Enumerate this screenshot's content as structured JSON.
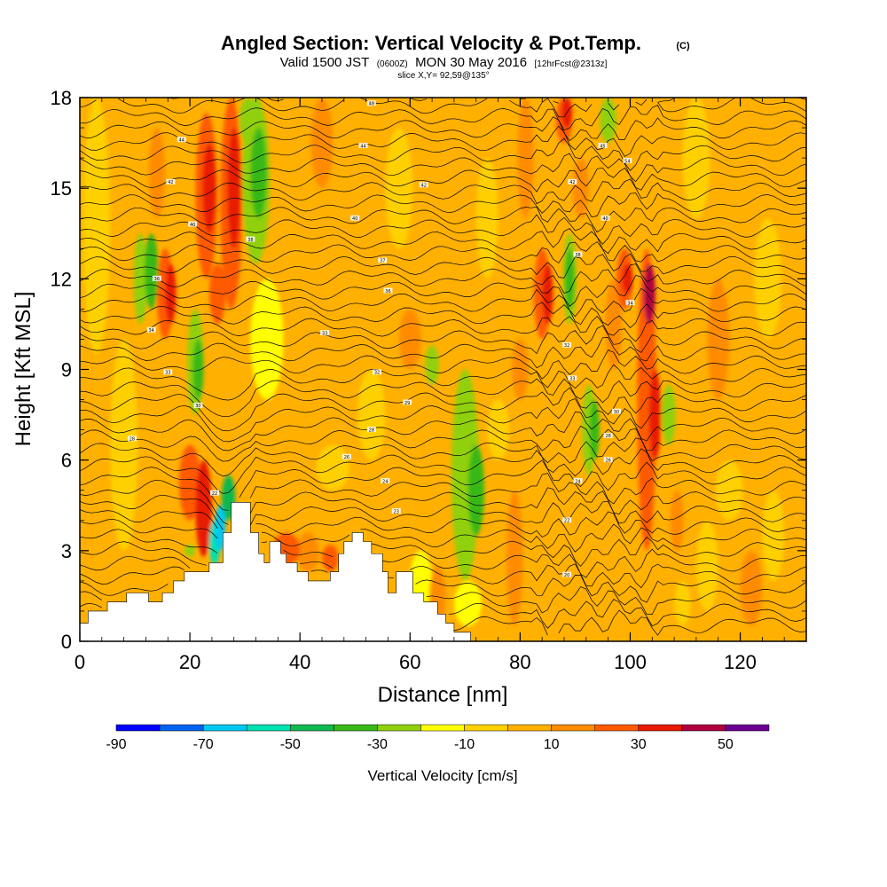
{
  "title": {
    "main": "Angled Section: Vertical Velocity & Pot.Temp.",
    "tag": "(C)",
    "sub_part1": "Valid 1500 JST",
    "sub_part2": "(0600Z)",
    "sub_part3": "MON 30 May 2016",
    "sub_part4": "[12hrFcst@2313z]",
    "slice": "slice X,Y= 92,59@135°"
  },
  "chart_data": {
    "type": "heatmap",
    "xlabel": "Distance [nm]",
    "ylabel": "Height [Kft MSL]",
    "xlim": [
      0,
      132
    ],
    "ylim": [
      0,
      18
    ],
    "x_ticks": [
      0,
      20,
      40,
      60,
      80,
      100,
      120
    ],
    "x_tick_labels": [
      "0",
      "20",
      "40",
      "60",
      "80",
      "100",
      "120"
    ],
    "y_ticks": [
      0,
      3,
      6,
      9,
      12,
      15,
      18
    ],
    "y_tick_labels": [
      "0",
      "3",
      "6",
      "9",
      "12",
      "15",
      "18"
    ],
    "colorbar": {
      "label": "Vertical Velocity [cm/s]",
      "tick_values": [
        -90,
        -70,
        -50,
        -30,
        -10,
        10,
        30,
        50
      ],
      "tick_labels": [
        "-90",
        "-70",
        "-50",
        "-30",
        "-10",
        "10",
        "30",
        "50"
      ],
      "bins": [
        {
          "from": -90,
          "to": -80,
          "color": "#0000ff"
        },
        {
          "from": -80,
          "to": -70,
          "color": "#0064f0"
        },
        {
          "from": -70,
          "to": -60,
          "color": "#00c8f0"
        },
        {
          "from": -60,
          "to": -50,
          "color": "#00e0b0"
        },
        {
          "from": -50,
          "to": -40,
          "color": "#10b850"
        },
        {
          "from": -40,
          "to": -30,
          "color": "#38b818"
        },
        {
          "from": -30,
          "to": -20,
          "color": "#90d010"
        },
        {
          "from": -20,
          "to": -10,
          "color": "#ffff00"
        },
        {
          "from": -10,
          "to": 0,
          "color": "#ffd000"
        },
        {
          "from": 0,
          "to": 10,
          "color": "#ffb000"
        },
        {
          "from": 10,
          "to": 20,
          "color": "#ff8c00"
        },
        {
          "from": 20,
          "to": 30,
          "color": "#ff5a00"
        },
        {
          "from": 30,
          "to": 40,
          "color": "#e81a00"
        },
        {
          "from": 40,
          "to": 50,
          "color": "#b00040"
        },
        {
          "from": 50,
          "to": 60,
          "color": "#6a0090"
        }
      ]
    },
    "background_field_color": "#ffb000",
    "velocity_cells": [
      {
        "x": 3,
        "y0": 9.5,
        "y1": 18,
        "w": 4,
        "v": -5
      },
      {
        "x": 8,
        "y0": 3,
        "y1": 10,
        "w": 4,
        "v": -5
      },
      {
        "x": 11,
        "y0": 10.5,
        "y1": 13.5,
        "w": 1.5,
        "v": -25
      },
      {
        "x": 13,
        "y0": 11,
        "y1": 13.5,
        "w": 1.5,
        "v": -35
      },
      {
        "x": 15.5,
        "y0": 10,
        "y1": 13,
        "w": 2,
        "v": 25
      },
      {
        "x": 16.5,
        "y0": 10.5,
        "y1": 12.5,
        "w": 1,
        "v": 35
      },
      {
        "x": 14,
        "y0": 14,
        "y1": 17,
        "w": 2,
        "v": 15
      },
      {
        "x": 21,
        "y0": 7.5,
        "y1": 11,
        "w": 2,
        "v": -25
      },
      {
        "x": 21.5,
        "y0": 8,
        "y1": 10,
        "w": 1,
        "v": -35
      },
      {
        "x": 23,
        "y0": 12,
        "y1": 17.5,
        "w": 3,
        "v": 25
      },
      {
        "x": 23.5,
        "y0": 13.5,
        "y1": 16.5,
        "w": 1.5,
        "v": 35
      },
      {
        "x": 27.5,
        "y0": 11,
        "y1": 18,
        "w": 3,
        "v": 25
      },
      {
        "x": 28,
        "y0": 13,
        "y1": 17,
        "w": 1.5,
        "v": 35
      },
      {
        "x": 32,
        "y0": 12.5,
        "y1": 18,
        "w": 4,
        "v": -25
      },
      {
        "x": 32.5,
        "y0": 14,
        "y1": 17,
        "w": 2,
        "v": -35
      },
      {
        "x": 30.5,
        "y0": 16.5,
        "y1": 18,
        "w": 2,
        "v": -25
      },
      {
        "x": 25,
        "y0": 10.5,
        "y1": 12.5,
        "w": 2,
        "v": 25
      },
      {
        "x": 34,
        "y0": 8,
        "y1": 12,
        "w": 5,
        "v": -15
      },
      {
        "x": 20,
        "y0": 4,
        "y1": 6.5,
        "w": 3,
        "v": 25
      },
      {
        "x": 22.5,
        "y0": 2.8,
        "y1": 6,
        "w": 2,
        "v": 35
      },
      {
        "x": 24.5,
        "y0": 2.5,
        "y1": 4,
        "w": 1,
        "v": -55
      },
      {
        "x": 25.5,
        "y0": 3,
        "y1": 4.5,
        "w": 1,
        "v": -65
      },
      {
        "x": 27,
        "y0": 4,
        "y1": 5.5,
        "w": 1.5,
        "v": -45
      },
      {
        "x": 20,
        "y0": 2.8,
        "y1": 3.2,
        "w": 1,
        "v": -30
      },
      {
        "x": 37.5,
        "y0": 2.5,
        "y1": 3.6,
        "w": 4,
        "v": 25
      },
      {
        "x": 41.5,
        "y0": 2.3,
        "y1": 3.6,
        "w": 3,
        "v": 15
      },
      {
        "x": 45.5,
        "y0": 2.3,
        "y1": 3.2,
        "w": 2,
        "v": 25
      },
      {
        "x": 46,
        "y0": 5,
        "y1": 6.5,
        "w": 5,
        "v": -5
      },
      {
        "x": 53,
        "y0": 6,
        "y1": 9,
        "w": 4,
        "v": -5
      },
      {
        "x": 62,
        "y0": 1,
        "y1": 3,
        "w": 3,
        "v": -15
      },
      {
        "x": 64,
        "y0": 8.5,
        "y1": 9.8,
        "w": 1.5,
        "v": -25
      },
      {
        "x": 65,
        "y0": 0.5,
        "y1": 2.5,
        "w": 2,
        "v": 15
      },
      {
        "x": 70,
        "y0": 2,
        "y1": 9,
        "w": 4,
        "v": -25
      },
      {
        "x": 72,
        "y0": 3.5,
        "y1": 6.5,
        "w": 2,
        "v": -35
      },
      {
        "x": 69,
        "y0": 5,
        "y1": 8,
        "w": 1.5,
        "v": 10
      },
      {
        "x": 70.5,
        "y0": 0.5,
        "y1": 2,
        "w": 4,
        "v": -15
      },
      {
        "x": 76,
        "y0": 6,
        "y1": 8,
        "w": 3,
        "v": -5
      },
      {
        "x": 79,
        "y0": 0.5,
        "y1": 5,
        "w": 2,
        "v": 10
      },
      {
        "x": 80,
        "y0": 8,
        "y1": 10,
        "w": 2,
        "v": 15
      },
      {
        "x": 84,
        "y0": 10,
        "y1": 13,
        "w": 2,
        "v": 25
      },
      {
        "x": 85,
        "y0": 10.5,
        "y1": 12.5,
        "w": 1,
        "v": 35
      },
      {
        "x": 88,
        "y0": 16.5,
        "y1": 18,
        "w": 2,
        "v": 25
      },
      {
        "x": 88.5,
        "y0": 17,
        "y1": 18,
        "w": 1,
        "v": 35
      },
      {
        "x": 89,
        "y0": 10.5,
        "y1": 13.5,
        "w": 1.5,
        "v": -25
      },
      {
        "x": 89,
        "y0": 11,
        "y1": 13,
        "w": 0.8,
        "v": -35
      },
      {
        "x": 91,
        "y0": 14,
        "y1": 16,
        "w": 2,
        "v": 15
      },
      {
        "x": 92.5,
        "y0": 5.5,
        "y1": 8.5,
        "w": 1.5,
        "v": -25
      },
      {
        "x": 93.5,
        "y0": 6,
        "y1": 8,
        "w": 0.8,
        "v": -35
      },
      {
        "x": 96,
        "y0": 16.5,
        "y1": 18,
        "w": 2,
        "v": -25
      },
      {
        "x": 97,
        "y0": 9,
        "y1": 12,
        "w": 2,
        "v": 15
      },
      {
        "x": 99,
        "y0": 11,
        "y1": 13,
        "w": 2,
        "v": 25
      },
      {
        "x": 99.5,
        "y0": 11.5,
        "y1": 12.5,
        "w": 1,
        "v": 35
      },
      {
        "x": 103,
        "y0": 3,
        "y1": 13,
        "w": 2.5,
        "v": 25
      },
      {
        "x": 103.5,
        "y0": 10.5,
        "y1": 12.5,
        "w": 1.2,
        "v": 45
      },
      {
        "x": 104.5,
        "y0": 6,
        "y1": 9,
        "w": 1.2,
        "v": 35
      },
      {
        "x": 107,
        "y0": 6.5,
        "y1": 8.5,
        "w": 1.5,
        "v": -25
      },
      {
        "x": 108.5,
        "y0": 3,
        "y1": 5,
        "w": 1.5,
        "v": 15
      },
      {
        "x": 109.5,
        "y0": 0.5,
        "y1": 2,
        "w": 2,
        "v": -5
      },
      {
        "x": 114,
        "y0": 1,
        "y1": 4,
        "w": 3,
        "v": -5
      },
      {
        "x": 118,
        "y0": 4,
        "y1": 6,
        "w": 4,
        "v": -5
      },
      {
        "x": 122,
        "y0": 0.5,
        "y1": 3,
        "w": 3,
        "v": 10
      },
      {
        "x": 126,
        "y0": 2,
        "y1": 5,
        "w": 3,
        "v": -5
      },
      {
        "x": 125,
        "y0": 10,
        "y1": 14,
        "w": 4,
        "v": -5
      },
      {
        "x": 112,
        "y0": 14,
        "y1": 18,
        "w": 4,
        "v": -5
      },
      {
        "x": 74,
        "y0": 12,
        "y1": 16,
        "w": 3,
        "v": -5
      },
      {
        "x": 58,
        "y0": 13,
        "y1": 17,
        "w": 4,
        "v": -5
      },
      {
        "x": 44,
        "y0": 15,
        "y1": 18,
        "w": 3,
        "v": 10
      },
      {
        "x": 60,
        "y0": 9,
        "y1": 11,
        "w": 3,
        "v": 10
      },
      {
        "x": 116,
        "y0": 8,
        "y1": 12,
        "w": 3,
        "v": 10
      },
      {
        "x": 81,
        "y0": 14,
        "y1": 18,
        "w": 2,
        "v": 10
      }
    ],
    "terrain_steps": [
      [
        0,
        0.6
      ],
      [
        1.5,
        1.0
      ],
      [
        5,
        1.3
      ],
      [
        8.5,
        1.6
      ],
      [
        12.5,
        1.3
      ],
      [
        15,
        1.6
      ],
      [
        17,
        2.0
      ],
      [
        19,
        2.3
      ],
      [
        23.5,
        2.6
      ],
      [
        26,
        3.6
      ],
      [
        27.5,
        4.6
      ],
      [
        31,
        3.6
      ],
      [
        32.5,
        2.9
      ],
      [
        33.5,
        2.6
      ],
      [
        34.5,
        3.3
      ],
      [
        36.5,
        2.9
      ],
      [
        37.5,
        2.6
      ],
      [
        39.5,
        2.3
      ],
      [
        41.5,
        2.0
      ],
      [
        45.5,
        2.3
      ],
      [
        47,
        2.9
      ],
      [
        48,
        3.3
      ],
      [
        49.5,
        3.6
      ],
      [
        51.5,
        3.3
      ],
      [
        53,
        2.9
      ],
      [
        55,
        2.3
      ],
      [
        56,
        1.6
      ],
      [
        57.5,
        2.3
      ],
      [
        60.5,
        1.6
      ],
      [
        62.5,
        1.3
      ],
      [
        65,
        0.9
      ],
      [
        66.5,
        0.6
      ],
      [
        68,
        0.3
      ],
      [
        71,
        0
      ],
      [
        132,
        0
      ]
    ],
    "isotherm_labels": [
      {
        "x": 53,
        "y": 17.8,
        "text": "48"
      },
      {
        "x": 18.5,
        "y": 16.6,
        "text": "44"
      },
      {
        "x": 51.5,
        "y": 16.4,
        "text": "44"
      },
      {
        "x": 95,
        "y": 16.4,
        "text": "45"
      },
      {
        "x": 16.5,
        "y": 15.2,
        "text": "42"
      },
      {
        "x": 62.5,
        "y": 15.1,
        "text": "42"
      },
      {
        "x": 89.5,
        "y": 15.2,
        "text": "42"
      },
      {
        "x": 99.5,
        "y": 15.9,
        "text": "54"
      },
      {
        "x": 20.5,
        "y": 13.8,
        "text": "40"
      },
      {
        "x": 50,
        "y": 14.0,
        "text": "40"
      },
      {
        "x": 95.5,
        "y": 14.0,
        "text": "40"
      },
      {
        "x": 31,
        "y": 13.3,
        "text": "38"
      },
      {
        "x": 55,
        "y": 12.6,
        "text": "37"
      },
      {
        "x": 90.5,
        "y": 12.8,
        "text": "38"
      },
      {
        "x": 14,
        "y": 12.0,
        "text": "36"
      },
      {
        "x": 56,
        "y": 11.6,
        "text": "36"
      },
      {
        "x": 100,
        "y": 11.2,
        "text": "34"
      },
      {
        "x": 13,
        "y": 10.3,
        "text": "34"
      },
      {
        "x": 44.5,
        "y": 10.2,
        "text": "33"
      },
      {
        "x": 88.5,
        "y": 9.8,
        "text": "32"
      },
      {
        "x": 16,
        "y": 8.9,
        "text": "33"
      },
      {
        "x": 54,
        "y": 8.9,
        "text": "32"
      },
      {
        "x": 89.5,
        "y": 8.7,
        "text": "33"
      },
      {
        "x": 21.5,
        "y": 7.8,
        "text": "30"
      },
      {
        "x": 59.5,
        "y": 7.9,
        "text": "29"
      },
      {
        "x": 97.5,
        "y": 7.6,
        "text": "30"
      },
      {
        "x": 53,
        "y": 7.0,
        "text": "28"
      },
      {
        "x": 96,
        "y": 6.8,
        "text": "28"
      },
      {
        "x": 9.5,
        "y": 6.7,
        "text": "28"
      },
      {
        "x": 48.5,
        "y": 6.1,
        "text": "26"
      },
      {
        "x": 96,
        "y": 6.0,
        "text": "26"
      },
      {
        "x": 55.5,
        "y": 5.3,
        "text": "24"
      },
      {
        "x": 90.5,
        "y": 5.3,
        "text": "24"
      },
      {
        "x": 24.5,
        "y": 4.9,
        "text": "22"
      },
      {
        "x": 57.5,
        "y": 4.3,
        "text": "23"
      },
      {
        "x": 88.5,
        "y": 4.0,
        "text": "22"
      },
      {
        "x": 88.5,
        "y": 2.2,
        "text": "20"
      }
    ]
  }
}
